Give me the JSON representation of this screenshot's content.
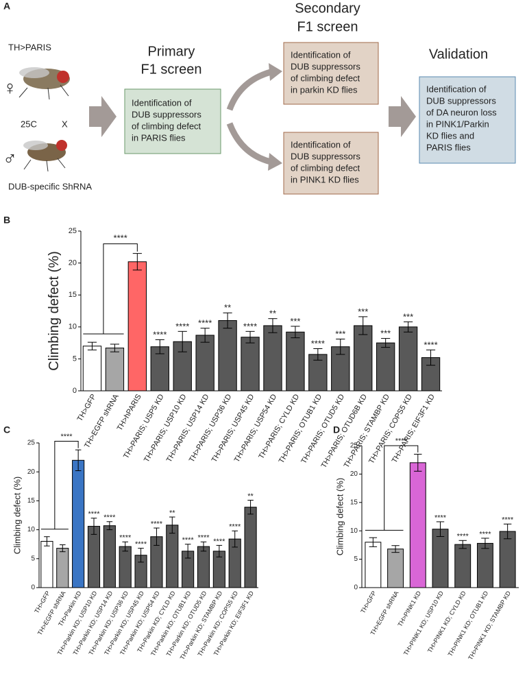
{
  "panel_a": {
    "label": "A",
    "fly_top_label": "TH>PARIS",
    "female_symbol": "♀",
    "temperature": "25C",
    "cross": "X",
    "male_symbol": "♂",
    "fly_bottom_label": "DUB-specific ShRNA",
    "primary_heading": [
      "Primary",
      "F1  screen"
    ],
    "primary_box": [
      "Identification of",
      "DUB suppressors",
      "of climbing defect",
      "in PARIS flies"
    ],
    "secondary_heading": [
      "Secondary",
      "F1 screen"
    ],
    "secondary_box_top": [
      "Identification of",
      "DUB suppressors",
      "of climbing defect",
      "in parkin KD flies"
    ],
    "secondary_box_bottom": [
      "Identification of",
      "DUB suppressors",
      "of climbing defect",
      "in PINK1 KD flies"
    ],
    "validation_heading": [
      "Validation"
    ],
    "validation_box": [
      "Identification of",
      "DUB suppressors",
      "of DA neuron loss",
      "in PINK1/Parkin",
      "KD flies and",
      "PARIS flies"
    ]
  },
  "chart_data": [
    {
      "type": "bar",
      "panel": "B",
      "ylabel": "Climbing defect (%)",
      "categories": [
        "TH>GFP",
        "TH>EGFP shRNA",
        "TH>hPARIS",
        "TH>PARIS; USP5 KD",
        "TH>PARIS; USP10 KD",
        "TH>PARIS; USP14 KD",
        "TH>PARIS; USP36 KD",
        "TH>PARIS; USP45 KD",
        "TH>PARIS; USP54 KD",
        "TH>PARIS; CYLD KD",
        "TH>PARIS; OTUB1 KD",
        "TH>PARIS; OTUD5 KD",
        "TH>PARIS; OTUD6B KD",
        "TH>PARIS; STAMBP KD",
        "TH>PARIS; COPS5 KD",
        "TH>PARIS; EIF3F1 KD"
      ],
      "values": [
        7.0,
        6.7,
        20.2,
        6.9,
        7.7,
        8.7,
        11.0,
        8.4,
        10.2,
        9.2,
        5.7,
        6.9,
        10.2,
        7.5,
        10.0,
        5.2
      ],
      "errors": [
        0.6,
        0.6,
        1.3,
        1.1,
        1.6,
        1.1,
        1.2,
        0.9,
        1.1,
        0.9,
        0.9,
        1.2,
        1.4,
        0.7,
        0.8,
        1.2
      ],
      "colors": [
        "#ffffff",
        "#a6a6a6",
        "#ff6666",
        "#595959",
        "#595959",
        "#595959",
        "#595959",
        "#595959",
        "#595959",
        "#595959",
        "#595959",
        "#595959",
        "#595959",
        "#595959",
        "#595959",
        "#595959"
      ],
      "significance": [
        null,
        null,
        null,
        "****",
        "****",
        "****",
        "**",
        "****",
        "**",
        "***",
        "****",
        "***",
        "***",
        "***",
        "***",
        "****"
      ],
      "bracket_label": "****",
      "ylim": [
        0,
        25
      ],
      "yticks": [
        0,
        5,
        10,
        15,
        20,
        25
      ]
    },
    {
      "type": "bar",
      "panel": "C",
      "ylabel": "Climbing defect (%)",
      "categories": [
        "TH>GFP",
        "TH>EGFP shRNA",
        "TH>Parkin KD",
        "TH>Parkin KD; USP10 KD",
        "TH>Parkin KD; USP14 KD",
        "TH>Parkin KD; USP36 KD",
        "TH>Parkin KD; USP45 KD",
        "TH>Parkin KD; USP54 KD",
        "TH>Parkin KD; CYLD KD",
        "TH>Parkin KD; OTUB1 KD",
        "TH>Parkin KD; OTUD5 KD",
        "TH>Parkin KD; STAMBP KD",
        "TH>Parkin KD; COPS5 KD",
        "TH>Parkin KD; EIF3F1 KD"
      ],
      "values": [
        8.0,
        6.8,
        22.0,
        10.6,
        10.7,
        7.1,
        5.6,
        8.8,
        10.8,
        6.3,
        7.1,
        6.3,
        8.4,
        13.9
      ],
      "errors": [
        0.8,
        0.6,
        1.8,
        1.4,
        0.7,
        0.8,
        1.2,
        1.5,
        1.4,
        1.2,
        0.8,
        1.0,
        1.4,
        1.2
      ],
      "colors": [
        "#ffffff",
        "#a6a6a6",
        "#3a75c4",
        "#595959",
        "#595959",
        "#595959",
        "#595959",
        "#595959",
        "#595959",
        "#595959",
        "#595959",
        "#595959",
        "#595959",
        "#595959"
      ],
      "significance": [
        null,
        null,
        null,
        "****",
        "****",
        "****",
        "****",
        "****",
        "**",
        "****",
        "****",
        "****",
        "****",
        "**"
      ],
      "bracket_label": "****",
      "ylim": [
        0,
        25
      ],
      "yticks": [
        0,
        5,
        10,
        15,
        20,
        25
      ]
    },
    {
      "type": "bar",
      "panel": "D",
      "ylabel": "Climbing defect (%)",
      "categories": [
        "TH>GFP",
        "TH>EGFP shRNA",
        "TH>PINK1 KD",
        "TH>PINK1 KD; USP10 KD",
        "TH>PINK1 KD; CYLD KD",
        "TH>PINK1 KD; OTUB1 KD",
        "TH>PINK1 KD; STAMBP KD"
      ],
      "values": [
        8.0,
        6.8,
        22.0,
        10.3,
        7.6,
        7.8,
        9.9
      ],
      "errors": [
        0.8,
        0.6,
        1.5,
        1.3,
        0.7,
        0.9,
        1.3
      ],
      "colors": [
        "#ffffff",
        "#a6a6a6",
        "#d966d6",
        "#595959",
        "#595959",
        "#595959",
        "#595959"
      ],
      "significance": [
        null,
        null,
        null,
        "****",
        "****",
        "****",
        "****"
      ],
      "bracket_label": "****",
      "ylim": [
        0,
        25
      ],
      "yticks": [
        0,
        5,
        10,
        15,
        20,
        25
      ]
    }
  ]
}
